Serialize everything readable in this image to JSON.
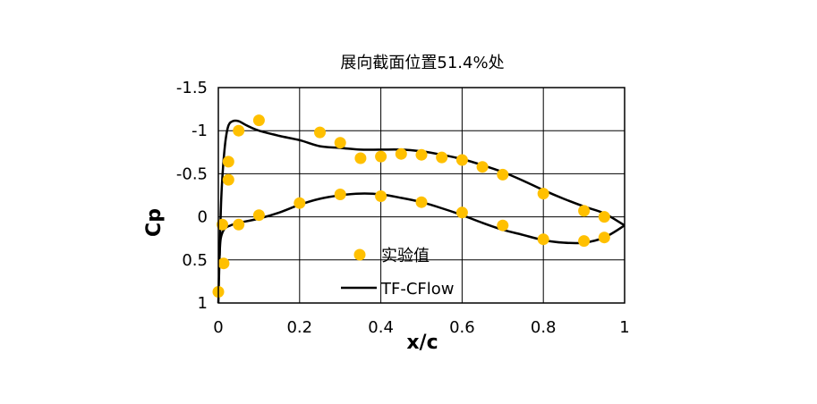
{
  "chart_data": {
    "type": "scatter",
    "title": "展向截面位置51.4%处",
    "xlabel": "x/c",
    "ylabel": "Cp",
    "xlim": [
      0,
      1
    ],
    "ylim": [
      1,
      -1.5
    ],
    "y_axis_inverted": true,
    "grid": true,
    "x_ticks": [
      "0",
      "0.2",
      "0.4",
      "0.6",
      "0.8",
      "1"
    ],
    "y_ticks": [
      "-1.5",
      "-1",
      "-0.5",
      "0",
      "0.5",
      "1"
    ],
    "legend_position": "lower-center",
    "series": [
      {
        "name": "实验值",
        "kind": "markers",
        "color": "#FFC000",
        "points": [
          [
            0.0,
            0.87
          ],
          [
            0.013,
            0.54
          ],
          [
            0.01,
            0.09
          ],
          [
            0.05,
            0.09
          ],
          [
            0.1,
            -0.02
          ],
          [
            0.2,
            -0.16
          ],
          [
            0.3,
            -0.26
          ],
          [
            0.4,
            -0.24
          ],
          [
            0.5,
            -0.17
          ],
          [
            0.6,
            -0.05
          ],
          [
            0.7,
            0.1
          ],
          [
            0.8,
            0.26
          ],
          [
            0.9,
            0.28
          ],
          [
            0.95,
            0.24
          ],
          [
            0.95,
            0.0
          ],
          [
            0.9,
            -0.07
          ],
          [
            0.8,
            -0.27
          ],
          [
            0.7,
            -0.49
          ],
          [
            0.65,
            -0.58
          ],
          [
            0.6,
            -0.66
          ],
          [
            0.55,
            -0.69
          ],
          [
            0.5,
            -0.72
          ],
          [
            0.45,
            -0.73
          ],
          [
            0.4,
            -0.7
          ],
          [
            0.35,
            -0.68
          ],
          [
            0.3,
            -0.86
          ],
          [
            0.25,
            -0.98
          ],
          [
            0.1,
            -1.12
          ],
          [
            0.05,
            -1.0
          ],
          [
            0.025,
            -0.64
          ],
          [
            0.025,
            -0.43
          ]
        ]
      },
      {
        "name": "TF-CFlow",
        "kind": "line",
        "color": "#000000",
        "upper": [
          [
            0.0,
            1.0
          ],
          [
            0.003,
            0.45
          ],
          [
            0.007,
            -0.2
          ],
          [
            0.012,
            -0.6
          ],
          [
            0.018,
            -0.9
          ],
          [
            0.025,
            -1.06
          ],
          [
            0.035,
            -1.11
          ],
          [
            0.05,
            -1.11
          ],
          [
            0.07,
            -1.06
          ],
          [
            0.1,
            -1.0
          ],
          [
            0.15,
            -0.94
          ],
          [
            0.2,
            -0.89
          ],
          [
            0.25,
            -0.82
          ],
          [
            0.3,
            -0.8
          ],
          [
            0.35,
            -0.78
          ],
          [
            0.4,
            -0.78
          ],
          [
            0.45,
            -0.78
          ],
          [
            0.5,
            -0.76
          ],
          [
            0.55,
            -0.72
          ],
          [
            0.6,
            -0.67
          ],
          [
            0.65,
            -0.6
          ],
          [
            0.7,
            -0.52
          ],
          [
            0.75,
            -0.42
          ],
          [
            0.8,
            -0.31
          ],
          [
            0.85,
            -0.21
          ],
          [
            0.9,
            -0.12
          ],
          [
            0.95,
            -0.04
          ],
          [
            1.0,
            0.1
          ]
        ],
        "lower": [
          [
            0.003,
            0.45
          ],
          [
            0.006,
            0.25
          ],
          [
            0.015,
            0.14
          ],
          [
            0.03,
            0.1
          ],
          [
            0.05,
            0.07
          ],
          [
            0.1,
            0.02
          ],
          [
            0.15,
            -0.05
          ],
          [
            0.2,
            -0.14
          ],
          [
            0.25,
            -0.21
          ],
          [
            0.3,
            -0.25
          ],
          [
            0.35,
            -0.27
          ],
          [
            0.4,
            -0.26
          ],
          [
            0.45,
            -0.22
          ],
          [
            0.5,
            -0.17
          ],
          [
            0.55,
            -0.1
          ],
          [
            0.6,
            -0.02
          ],
          [
            0.65,
            0.07
          ],
          [
            0.7,
            0.15
          ],
          [
            0.75,
            0.21
          ],
          [
            0.8,
            0.27
          ],
          [
            0.85,
            0.3
          ],
          [
            0.9,
            0.3
          ],
          [
            0.95,
            0.24
          ],
          [
            1.0,
            0.1
          ]
        ]
      }
    ]
  }
}
